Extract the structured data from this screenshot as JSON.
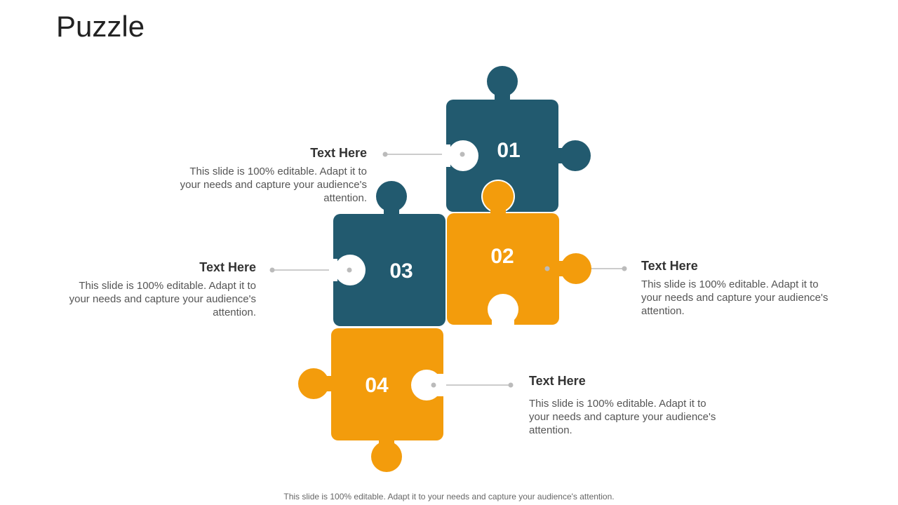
{
  "title": "Puzzle",
  "colors": {
    "teal": "#225a6f",
    "orange": "#f39c0c"
  },
  "pieces": [
    {
      "label": "01"
    },
    {
      "label": "02"
    },
    {
      "label": "03"
    },
    {
      "label": "04"
    }
  ],
  "blocks": [
    {
      "heading": "Text Here",
      "body": "This slide is 100% editable. Adapt it to your needs and capture your audience's attention."
    },
    {
      "heading": "Text Here",
      "body": "This slide is 100% editable. Adapt it to your needs and capture your audience's attention."
    },
    {
      "heading": "Text Here",
      "body": "This slide is 100% editable. Adapt it to your needs and capture your audience's attention."
    },
    {
      "heading": "Text Here",
      "body": "This slide is 100% editable. Adapt it to your needs and capture your audience's attention."
    }
  ],
  "footer": "This slide is 100% editable. Adapt it to your needs and capture your audience's attention."
}
